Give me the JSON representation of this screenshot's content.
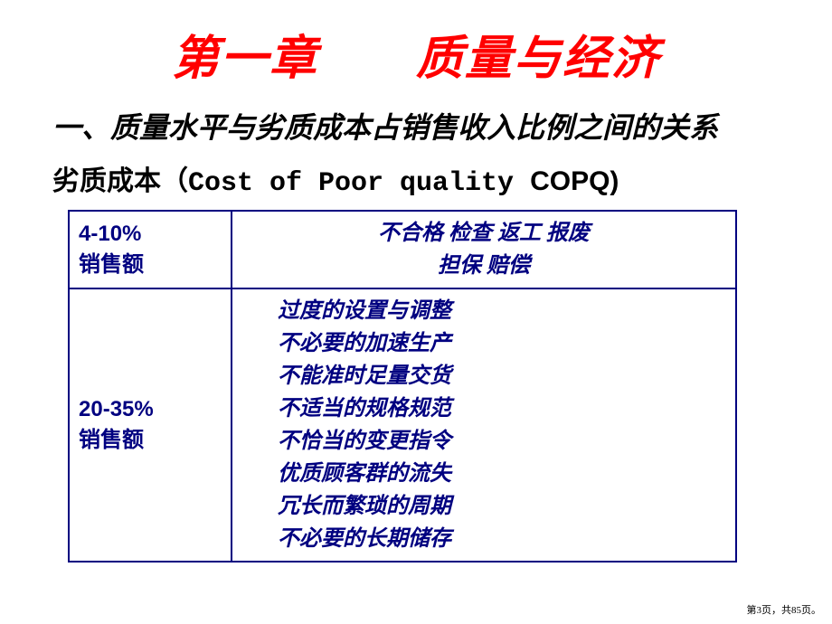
{
  "slide": {
    "chapter_title": "第一章　　质量与经济",
    "section_heading": "一、质量水平与劣质成本占销售收入比例之间的关系",
    "subtitle_cn": "劣质成本",
    "subtitle_en": "（Cost of  Poor quality  ",
    "subtitle_acronym": "COPQ)",
    "colors": {
      "title_color": "#ff0000",
      "text_color": "#000000",
      "table_color": "#000080",
      "background": "#ffffff"
    },
    "table": {
      "row1": {
        "percent": "4-10%",
        "label": "销售额",
        "items_line1": "不合格 检查 返工 报废",
        "items_line2": "担保 赔偿"
      },
      "row2": {
        "percent": "20-35%",
        "label": "销售额",
        "items": [
          "过度的设置与调整",
          "不必要的加速生产",
          "不能准时足量交货",
          "不适当的规格规范",
          "不恰当的变更指令",
          "优质顾客群的流失",
          "冗长而繁琐的周期",
          "不必要的长期储存"
        ]
      }
    }
  },
  "footer": {
    "text": "第3页，共85页。"
  }
}
